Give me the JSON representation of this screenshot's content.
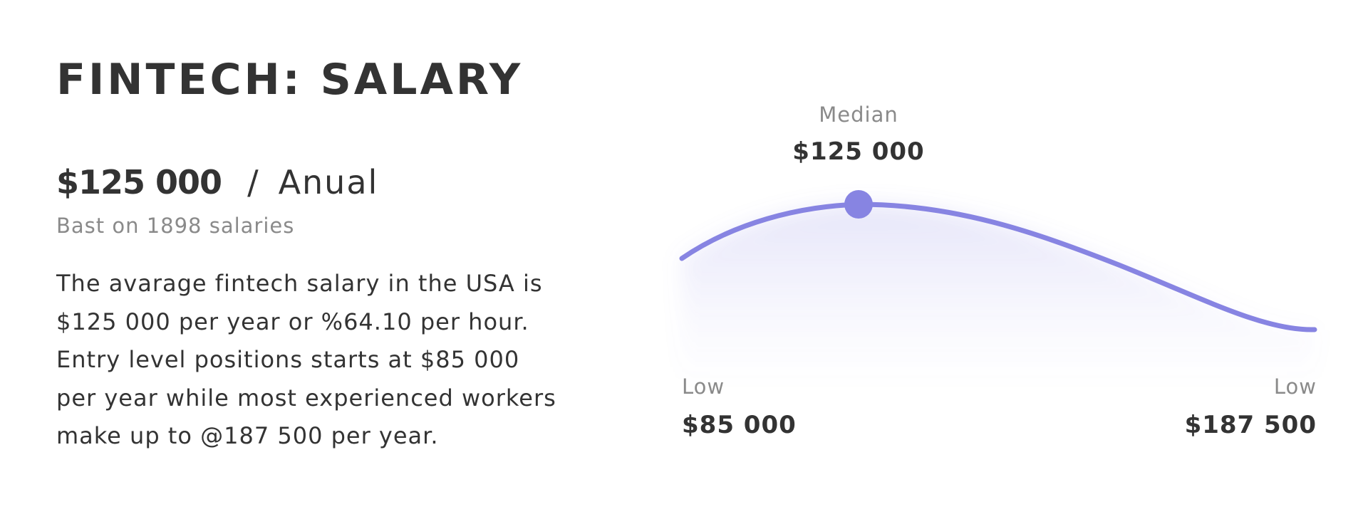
{
  "header": {
    "title": "FINTECH: SALARY"
  },
  "summary": {
    "amount": "$125 000",
    "separator": "/",
    "period": "Anual",
    "basis": "Bast on 1898 salaries"
  },
  "description": {
    "lines": [
      "The avarage fintech salary in the USA is",
      "$125 000 per year or %64.10 per hour.",
      "Entry level positions starts at $85 000",
      "per year while most experienced workers",
      "make up to @187 500 per year."
    ]
  },
  "colors": {
    "accent": "#8784e2",
    "text": "#333333",
    "muted": "#8a8a8a"
  },
  "chart_data": {
    "type": "area",
    "markers": [
      {
        "caption": "Low",
        "value": 85000,
        "display": "$85 000",
        "position": "start"
      },
      {
        "caption": "Median",
        "value": 125000,
        "display": "$125 000",
        "position": "peak"
      },
      {
        "caption": "Low",
        "value": 187500,
        "display": "$187 500",
        "position": "end"
      }
    ],
    "grid": false,
    "legend": "none"
  }
}
